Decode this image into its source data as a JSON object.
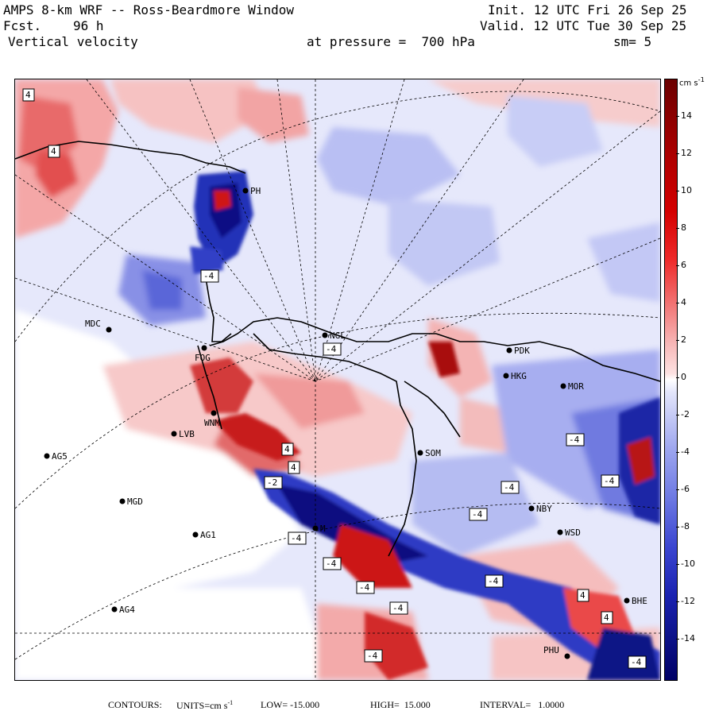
{
  "header": {
    "title": "AMPS 8-km WRF -- Ross-Beardmore Window",
    "forecast_label": "Fcst.",
    "forecast_hours": "96 h",
    "field": "Vertical velocity",
    "pressure": "at pressure =  700 hPa",
    "init": "Init. 12 UTC Fri 26 Sep 25",
    "valid": "Valid. 12 UTC Tue 30 Sep 25",
    "smoothing": "sm= 5"
  },
  "colorbar": {
    "unit": "cm s",
    "unit_exp": "-1",
    "ticks": [
      "14",
      "12",
      "10",
      "8",
      "6",
      "4",
      "2",
      "0",
      "-2",
      "-4",
      "-6",
      "-8",
      "-10",
      "-12",
      "-14"
    ],
    "range": [
      -15,
      15
    ],
    "colors": {
      "positive": "#d40000",
      "negative": "#1a22b0",
      "zero": "#ffffff"
    }
  },
  "footer": {
    "contours_label": "CONTOURS:",
    "units_text": "UNITS=cm s",
    "units_exp": "-1",
    "low_text": "LOW= -15.000",
    "high_text": "HIGH=  15.000",
    "interval_text": "INTERVAL=   1.0000"
  },
  "stations": [
    {
      "name": "MDC"
    },
    {
      "name": "NGL"
    },
    {
      "name": "PDK"
    },
    {
      "name": "FOG"
    },
    {
      "name": "HKG"
    },
    {
      "name": "MOR"
    },
    {
      "name": "WNM"
    },
    {
      "name": "LVB"
    },
    {
      "name": "SOM"
    },
    {
      "name": "AG5"
    },
    {
      "name": "MGD"
    },
    {
      "name": "NBY"
    },
    {
      "name": "AG1"
    },
    {
      "name": "WSD"
    },
    {
      "name": "AG4"
    },
    {
      "name": "BHE"
    },
    {
      "name": "PHU"
    },
    {
      "name": "PH"
    },
    {
      "name": "M"
    }
  ],
  "contour_labels": [
    "4",
    "4",
    "-4",
    "-4",
    "4",
    "4",
    "-4",
    "-4",
    "-4",
    "-4",
    "-4",
    "-4",
    "-4",
    "-4",
    "4",
    "-4",
    "4",
    "-4",
    "-2",
    "-4"
  ]
}
